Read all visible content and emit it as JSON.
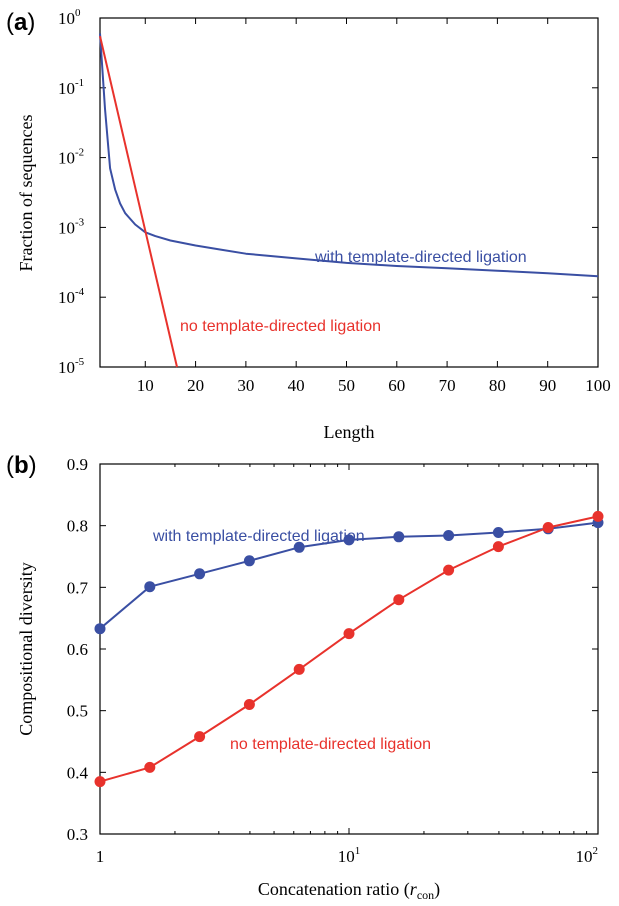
{
  "colors": {
    "blue": "#3a4fa3",
    "red": "#e8322c"
  },
  "chart_data": [
    {
      "panel_label": "a",
      "type": "line",
      "xlabel": "Length",
      "ylabel": "Fraction of sequences",
      "xlim": [
        1,
        100
      ],
      "ylim": [
        1e-05,
        1
      ],
      "yscale": "log",
      "x_ticks": [
        10,
        20,
        30,
        40,
        50,
        60,
        70,
        80,
        90,
        100
      ],
      "y_ticks": [
        {
          "value": 1e-05,
          "base": "10",
          "exp": "-5"
        },
        {
          "value": 0.0001,
          "base": "10",
          "exp": "-4"
        },
        {
          "value": 0.001,
          "base": "10",
          "exp": "-3"
        },
        {
          "value": 0.01,
          "base": "10",
          "exp": "-2"
        },
        {
          "value": 0.1,
          "base": "10",
          "exp": "-1"
        },
        {
          "value": 1,
          "base": "10",
          "exp": "0"
        }
      ],
      "grid": false,
      "series": [
        {
          "name": "with template-directed ligation",
          "color": "blue",
          "x": [
            1,
            2,
            3,
            4,
            5,
            6,
            8,
            10,
            12,
            15,
            20,
            25,
            30,
            40,
            50,
            60,
            70,
            80,
            90,
            100
          ],
          "y": [
            0.6,
            0.05,
            0.007,
            0.0035,
            0.0022,
            0.0016,
            0.0011,
            0.00085,
            0.00075,
            0.00065,
            0.00055,
            0.00048,
            0.00042,
            0.00036,
            0.00031,
            0.00028,
            0.00026,
            0.00024,
            0.00022,
            0.0002
          ]
        },
        {
          "name": "no template-directed ligation",
          "color": "red",
          "x": [
            1,
            16.3
          ],
          "y": [
            0.55,
            1e-05
          ]
        }
      ]
    },
    {
      "panel_label": "b",
      "type": "line",
      "xlabel": "Concatenation ratio (r",
      "xlabel_sub": "con",
      "xlabel_end": ")",
      "ylabel": "Compositional diversity",
      "xscale": "log",
      "xlim": [
        1,
        100
      ],
      "ylim": [
        0.3,
        0.9
      ],
      "x_ticks": [
        {
          "value": 1,
          "base": "1",
          "exp": ""
        },
        {
          "value": 10,
          "base": "10",
          "exp": "1"
        },
        {
          "value": 100,
          "base": "10",
          "exp": "2"
        }
      ],
      "y_ticks": [
        0.3,
        0.4,
        0.5,
        0.6,
        0.7,
        0.8,
        0.9
      ],
      "grid": false,
      "series": [
        {
          "name": "with template-directed ligation",
          "color": "blue",
          "x": [
            1,
            1.585,
            2.512,
            3.981,
            6.31,
            10,
            15.85,
            25.12,
            39.81,
            63.1,
            100
          ],
          "y": [
            0.633,
            0.701,
            0.722,
            0.743,
            0.765,
            0.777,
            0.782,
            0.784,
            0.789,
            0.795,
            0.805
          ]
        },
        {
          "name": "no template-directed ligation",
          "color": "red",
          "x": [
            1,
            1.585,
            2.512,
            3.981,
            6.31,
            10,
            15.85,
            25.12,
            39.81,
            63.1,
            100
          ],
          "y": [
            0.385,
            0.408,
            0.458,
            0.51,
            0.567,
            0.625,
            0.68,
            0.728,
            0.766,
            0.797,
            0.815
          ]
        }
      ]
    }
  ]
}
